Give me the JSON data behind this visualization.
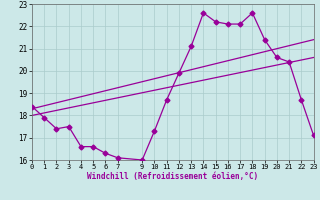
{
  "bg_color": "#cce8e8",
  "line_color": "#990099",
  "grid_color": "#aacccc",
  "xlim": [
    0,
    23
  ],
  "ylim": [
    16,
    23
  ],
  "xticks": [
    0,
    1,
    2,
    3,
    4,
    5,
    6,
    7,
    9,
    10,
    11,
    12,
    13,
    14,
    15,
    16,
    17,
    18,
    19,
    20,
    21,
    22,
    23
  ],
  "yticks": [
    16,
    17,
    18,
    19,
    20,
    21,
    22,
    23
  ],
  "line1_x": [
    0,
    1,
    2,
    3,
    4,
    5,
    6,
    7,
    9,
    10,
    11,
    12,
    13,
    14,
    15,
    16,
    17,
    18,
    19,
    20,
    21,
    22,
    23
  ],
  "line1_y": [
    18.4,
    17.9,
    17.4,
    17.5,
    16.6,
    16.6,
    16.3,
    16.1,
    16.0,
    17.3,
    18.7,
    19.9,
    21.1,
    22.6,
    22.2,
    22.1,
    22.1,
    22.6,
    21.4,
    20.6,
    20.4,
    18.7,
    17.1
  ],
  "line2_x": [
    0,
    23
  ],
  "line2_y": [
    18.3,
    21.4
  ],
  "line3_x": [
    0,
    23
  ],
  "line3_y": [
    18.0,
    20.6
  ],
  "xlabel": "Windchill (Refroidissement éolien,°C)",
  "marker_size": 2.5,
  "linewidth": 0.9,
  "tick_fontsize": 5.0,
  "xlabel_fontsize": 5.5
}
